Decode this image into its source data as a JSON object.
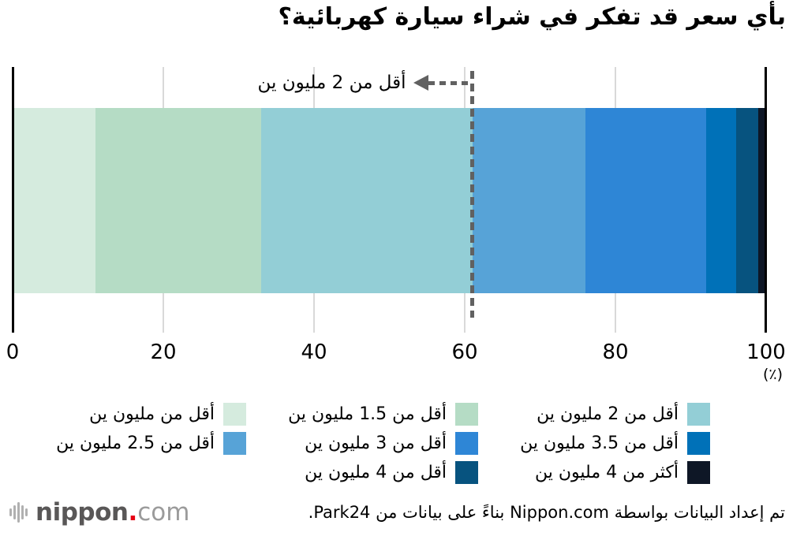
{
  "title": "بأي سعر قد تفكر في شراء سيارة كهربائية؟",
  "chart_data": {
    "type": "bar",
    "stacked": true,
    "orientation": "horizontal",
    "title": "بأي سعر قد تفكر في شراء سيارة كهربائية؟",
    "x_axis": {
      "range": [
        0,
        100
      ],
      "ticks": [
        0,
        20,
        40,
        60,
        80,
        100
      ],
      "unit_label": "(٪)"
    },
    "grid": true,
    "legend_position": "bottom",
    "segments": [
      {
        "label": "أقل من مليون ين",
        "value": 11,
        "color": "#d5ebde"
      },
      {
        "label": "أقل من 1.5 مليون ين",
        "value": 22,
        "color": "#b5dcc5"
      },
      {
        "label": "أقل من 2 مليون ين",
        "value": 28,
        "color": "#93ced6"
      },
      {
        "label": "أقل من 2.5 مليون ين",
        "value": 15,
        "color": "#57a3d7"
      },
      {
        "label": "أقل من 3 مليون ين",
        "value": 16,
        "color": "#2e86d6"
      },
      {
        "label": "أقل من 3.5 مليون ين",
        "value": 4,
        "color": "#0071b8"
      },
      {
        "label": "أقل من 4 مليون ين",
        "value": 3,
        "color": "#07537f"
      },
      {
        "label": "أكثر من 4 مليون ين",
        "value": 1,
        "color": "#0e1726"
      }
    ],
    "annotation": {
      "label": "أقل من 2 مليون ين",
      "at_value": 61
    }
  },
  "legend": {
    "items": [
      {
        "label": "أقل من 2 مليون ين",
        "color": "#93ced6"
      },
      {
        "label": "أقل من 1.5 مليون ين",
        "color": "#b5dcc5"
      },
      {
        "label": "أقل من مليون ين",
        "color": "#d5ebde"
      },
      {
        "label": "أقل من 3.5 مليون ين",
        "color": "#0071b8"
      },
      {
        "label": "أقل من 3 مليون ين",
        "color": "#2e86d6"
      },
      {
        "label": "أقل من 2.5 مليون ين",
        "color": "#57a3d7"
      },
      {
        "label": "أكثر من 4 مليون ين",
        "color": "#0e1726"
      },
      {
        "label": "أقل من 4 مليون ين",
        "color": "#07537f"
      }
    ]
  },
  "footer": {
    "credit": "تم إعداد البيانات بواسطة Nippon.com بناءً على بيانات من Park24.",
    "logo": {
      "brand": "nippon",
      "dot": ".",
      "tld": "com"
    }
  },
  "colors": {
    "grid": "#d9d9d9",
    "spine": "#000000",
    "dash_line": "#616161"
  }
}
